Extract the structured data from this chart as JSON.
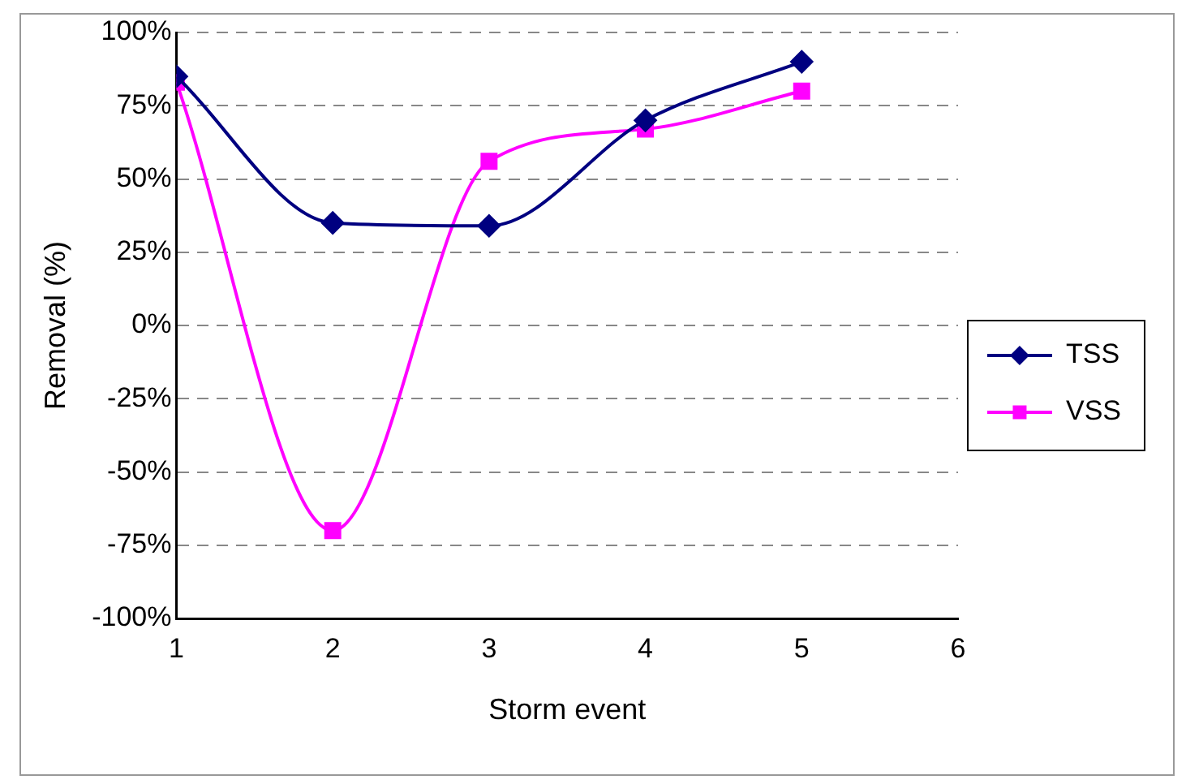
{
  "chart_data": {
    "type": "line",
    "xlabel": "Storm event",
    "ylabel": "Removal (%)",
    "x": [
      1,
      2,
      3,
      4,
      5
    ],
    "xlim": [
      1,
      6
    ],
    "xticks": [
      1,
      2,
      3,
      4,
      5,
      6
    ],
    "ylim": [
      -100,
      100
    ],
    "yticks": [
      {
        "value": -100,
        "label": "-100%"
      },
      {
        "value": -75,
        "label": "-75%"
      },
      {
        "value": -50,
        "label": "-50%"
      },
      {
        "value": -25,
        "label": "-25%"
      },
      {
        "value": 0,
        "label": "0%"
      },
      {
        "value": 25,
        "label": "25%"
      },
      {
        "value": 50,
        "label": "50%"
      },
      {
        "value": 75,
        "label": "75%"
      },
      {
        "value": 100,
        "label": "100%"
      }
    ],
    "grid": "y",
    "legend": "right",
    "line_style": "solid",
    "series": [
      {
        "name": "TSS",
        "color": "#000080",
        "marker": "diamond",
        "values": [
          85,
          35,
          34,
          70,
          90
        ]
      },
      {
        "name": "VSS",
        "color": "#ff00ff",
        "marker": "square",
        "values": [
          83,
          -70,
          56,
          67,
          80
        ]
      }
    ]
  }
}
